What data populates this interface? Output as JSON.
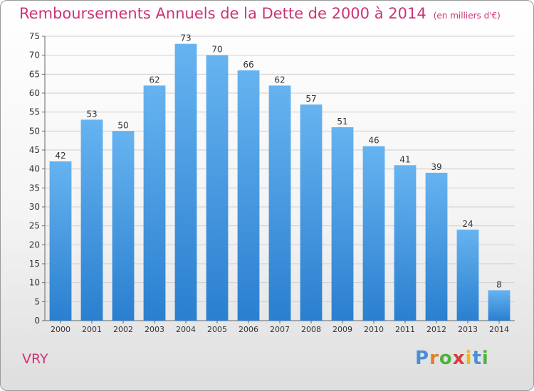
{
  "title": "Remboursements Annuels de la Dette de 2000 à 2014",
  "unit_note": "(en milliers d'€)",
  "commune": "VRY",
  "logo": {
    "letters": [
      "P",
      "r",
      "o",
      "x",
      "i",
      "t",
      "i"
    ],
    "colors": [
      "#4a8fd6",
      "#e77b27",
      "#4db33d",
      "#d93a3a",
      "#f2b417",
      "#4a8fd6",
      "#4db33d"
    ]
  },
  "colors": {
    "bar_light": "#66b3f0",
    "bar_dark": "#2a7fcf",
    "title": "#cc3377"
  },
  "chart_data": {
    "type": "bar",
    "title": "Remboursements Annuels de la Dette de 2000 à 2014",
    "xlabel": "",
    "ylabel": "",
    "categories": [
      "2000",
      "2001",
      "2002",
      "2003",
      "2004",
      "2005",
      "2006",
      "2007",
      "2008",
      "2009",
      "2010",
      "2011",
      "2012",
      "2013",
      "2014"
    ],
    "values": [
      42,
      53,
      50,
      62,
      73,
      70,
      66,
      62,
      57,
      51,
      46,
      41,
      39,
      24,
      8
    ],
    "ylim": [
      0,
      75
    ],
    "yticks": [
      0,
      5,
      10,
      15,
      20,
      25,
      30,
      35,
      40,
      45,
      50,
      55,
      60,
      65,
      70,
      75
    ],
    "grid": true,
    "data_labels": true
  }
}
